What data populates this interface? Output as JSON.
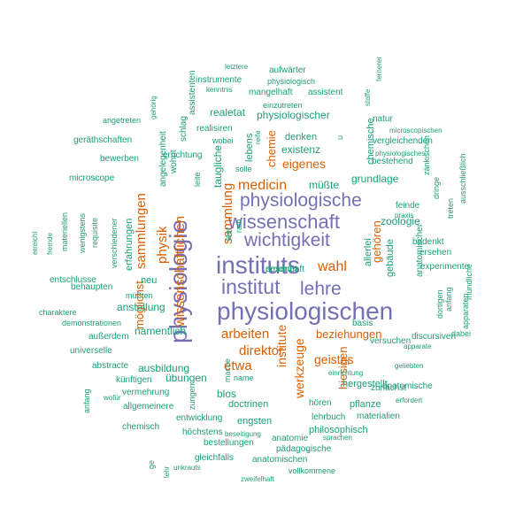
{
  "palette": {
    "large": "#7570b3",
    "medium": "#d95f02",
    "small": "#1b9e77"
  },
  "words": [
    {
      "text": "physiologischen",
      "tier": "large"
    },
    {
      "text": "physiologie",
      "tier": "large"
    },
    {
      "text": "instituts",
      "tier": "large"
    },
    {
      "text": "institut",
      "tier": "large"
    },
    {
      "text": "lehre",
      "tier": "large"
    },
    {
      "text": "wissenschaft",
      "tier": "large"
    },
    {
      "text": "wichtigkeit",
      "tier": "large"
    },
    {
      "text": "physiologische",
      "tier": "large"
    },
    {
      "text": "wissenschaftlichen",
      "tier": "medium"
    },
    {
      "text": "sammlungen",
      "tier": "medium"
    },
    {
      "text": "physik",
      "tier": "medium"
    },
    {
      "text": "sammlung",
      "tier": "medium"
    },
    {
      "text": "möglichst",
      "tier": "medium"
    },
    {
      "text": "medicin",
      "tier": "medium"
    },
    {
      "text": "eigenes",
      "tier": "medium"
    },
    {
      "text": "chemie",
      "tier": "medium"
    },
    {
      "text": "wahl",
      "tier": "medium"
    },
    {
      "text": "gehören",
      "tier": "medium"
    },
    {
      "text": "arbeiten",
      "tier": "medium"
    },
    {
      "text": "direktor",
      "tier": "medium"
    },
    {
      "text": "etwa",
      "tier": "medium"
    },
    {
      "text": "institute",
      "tier": "medium"
    },
    {
      "text": "werkzeuge",
      "tier": "medium"
    },
    {
      "text": "beziehungen",
      "tier": "medium"
    },
    {
      "text": "geistes",
      "tier": "medium"
    },
    {
      "text": "hiesigen",
      "tier": "medium"
    },
    {
      "text": "taugliche",
      "tier": "small"
    },
    {
      "text": "lebens",
      "tier": "small"
    },
    {
      "text": "existenz",
      "tier": "small"
    },
    {
      "text": "realetat",
      "tier": "small"
    },
    {
      "text": "physiologischer",
      "tier": "small"
    },
    {
      "text": "denken",
      "tier": "small"
    },
    {
      "text": "chemische",
      "tier": "small"
    },
    {
      "text": "grundlage",
      "tier": "small"
    },
    {
      "text": "müßte",
      "tier": "small"
    },
    {
      "text": "zoologie",
      "tier": "small"
    },
    {
      "text": "allerlei",
      "tier": "small"
    },
    {
      "text": "gebäude",
      "tier": "small"
    },
    {
      "text": "neu",
      "tier": "small"
    },
    {
      "text": "anstellung",
      "tier": "small"
    },
    {
      "text": "namentlich",
      "tier": "small"
    },
    {
      "text": "ausbildung",
      "tier": "small"
    },
    {
      "text": "übungen",
      "tier": "small"
    },
    {
      "text": "blos",
      "tier": "small"
    },
    {
      "text": "doctrinen",
      "tier": "small"
    },
    {
      "text": "hergestellt",
      "tier": "small"
    },
    {
      "text": "zunächst",
      "tier": "small"
    },
    {
      "text": "engsten",
      "tier": "small"
    },
    {
      "text": "philosophisch",
      "tier": "small"
    },
    {
      "text": "pflanze",
      "tier": "small"
    },
    {
      "text": "lehrbuch",
      "tier": "small"
    },
    {
      "text": "materialien",
      "tier": "small"
    },
    {
      "text": "anatomische",
      "tier": "small"
    },
    {
      "text": "anatomie",
      "tier": "small"
    },
    {
      "text": "pädagogische",
      "tier": "small"
    },
    {
      "text": "anatomischen",
      "tier": "small"
    },
    {
      "text": "bestellungen",
      "tier": "small"
    },
    {
      "text": "gleichfalls",
      "tier": "small"
    },
    {
      "text": "höchstens",
      "tier": "small"
    },
    {
      "text": "entwicklung",
      "tier": "small"
    },
    {
      "text": "chemisch",
      "tier": "small"
    },
    {
      "text": "allgemeinere",
      "tier": "small"
    },
    {
      "text": "vermehrung",
      "tier": "small"
    },
    {
      "text": "künftigen",
      "tier": "small"
    },
    {
      "text": "abstracte",
      "tier": "small"
    },
    {
      "text": "universelle",
      "tier": "small"
    },
    {
      "text": "außerdem",
      "tier": "small"
    },
    {
      "text": "demonstrationen",
      "tier": "small"
    },
    {
      "text": "charaktere",
      "tier": "small"
    },
    {
      "text": "müßten",
      "tier": "small"
    },
    {
      "text": "behaupten",
      "tier": "small"
    },
    {
      "text": "entschlusse",
      "tier": "small"
    },
    {
      "text": "erfahrungen",
      "tier": "small"
    },
    {
      "text": "microscope",
      "tier": "small"
    },
    {
      "text": "bewerben",
      "tier": "small"
    },
    {
      "text": "geräthschaften",
      "tier": "small"
    },
    {
      "text": "angetreten",
      "tier": "small"
    },
    {
      "text": "gehörig",
      "tier": "small"
    },
    {
      "text": "instrumente",
      "tier": "small"
    },
    {
      "text": "letztere",
      "tier": "small"
    },
    {
      "text": "kenntnis",
      "tier": "small"
    },
    {
      "text": "aufwärter",
      "tier": "small"
    },
    {
      "text": "physiologisch",
      "tier": "small"
    },
    {
      "text": "mangelhaft",
      "tier": "small"
    },
    {
      "text": "assistent",
      "tier": "small"
    },
    {
      "text": "einzutreten",
      "tier": "small"
    },
    {
      "text": "realisiren",
      "tier": "small"
    },
    {
      "text": "errichtung",
      "tier": "small"
    },
    {
      "text": "wobei",
      "tier": "small"
    },
    {
      "text": "solle",
      "tier": "small"
    },
    {
      "text": "reife",
      "tier": "small"
    },
    {
      "text": "natur",
      "tier": "small"
    },
    {
      "text": "microscopischen",
      "tier": "small"
    },
    {
      "text": "vergleichenden",
      "tier": "small"
    },
    {
      "text": "physiologisches",
      "tier": "small"
    },
    {
      "text": "bestehend",
      "tier": "small"
    },
    {
      "text": "feinde",
      "tier": "small"
    },
    {
      "text": "praxis",
      "tier": "small"
    },
    {
      "text": "bedenkt",
      "tier": "small"
    },
    {
      "text": "ersehen",
      "tier": "small"
    },
    {
      "text": "experimente",
      "tier": "small"
    },
    {
      "text": "discursiven",
      "tier": "small"
    },
    {
      "text": "apparate",
      "tier": "small"
    },
    {
      "text": "dabei",
      "tier": "small"
    },
    {
      "text": "basis",
      "tier": "small"
    },
    {
      "text": "versuchen",
      "tier": "small"
    },
    {
      "text": "geliebten",
      "tier": "small"
    },
    {
      "text": "erfordert",
      "tier": "small"
    },
    {
      "text": "hören",
      "tier": "small"
    },
    {
      "text": "einrichtung",
      "tier": "small"
    },
    {
      "text": "sprachen",
      "tier": "small"
    },
    {
      "text": "vollkommene",
      "tier": "small"
    },
    {
      "text": "zweifelhaft",
      "tier": "small"
    },
    {
      "text": "unkrauts",
      "tier": "small"
    },
    {
      "text": "beseitigung",
      "tier": "small"
    },
    {
      "text": "name",
      "tier": "small"
    },
    {
      "text": "wofür",
      "tier": "small"
    },
    {
      "text": "schlag",
      "tier": "small"
    },
    {
      "text": "assistenten",
      "tier": "small"
    },
    {
      "text": "wohnt",
      "tier": "small"
    },
    {
      "text": "angelegenheit",
      "tier": "small"
    },
    {
      "text": "leite",
      "tier": "small"
    },
    {
      "text": "rath",
      "tier": "small"
    },
    {
      "text": "leer",
      "tier": "small"
    },
    {
      "text": "u",
      "tier": "small"
    },
    {
      "text": "stoffe",
      "tier": "small"
    },
    {
      "text": "fernerer",
      "tier": "small"
    },
    {
      "text": "zänkischen",
      "tier": "small"
    },
    {
      "text": "dringe",
      "tier": "small"
    },
    {
      "text": "treten",
      "tier": "small"
    },
    {
      "text": "ausschließlich",
      "tier": "small"
    },
    {
      "text": "anatomischer",
      "tier": "small"
    },
    {
      "text": "dortigen",
      "tier": "small"
    },
    {
      "text": "anfang",
      "tier": "small"
    },
    {
      "text": "apparaten",
      "tier": "small"
    },
    {
      "text": "mündliche",
      "tier": "small"
    },
    {
      "text": "erreicht",
      "tier": "small"
    },
    {
      "text": "fremde",
      "tier": "small"
    },
    {
      "text": "materiellen",
      "tier": "small"
    },
    {
      "text": "wenigstens",
      "tier": "small"
    },
    {
      "text": "requisite",
      "tier": "small"
    },
    {
      "text": "verschiedener",
      "tier": "small"
    },
    {
      "text": "anfang",
      "tier": "small"
    },
    {
      "text": "mache",
      "tier": "small"
    },
    {
      "text": "zungen",
      "tier": "small"
    },
    {
      "text": "ge",
      "tier": "small"
    },
    {
      "text": "lehr",
      "tier": "small"
    },
    {
      "text": "riesenhaft",
      "tier": "small"
    },
    {
      "text": "errichtet",
      "tier": "small"
    }
  ]
}
